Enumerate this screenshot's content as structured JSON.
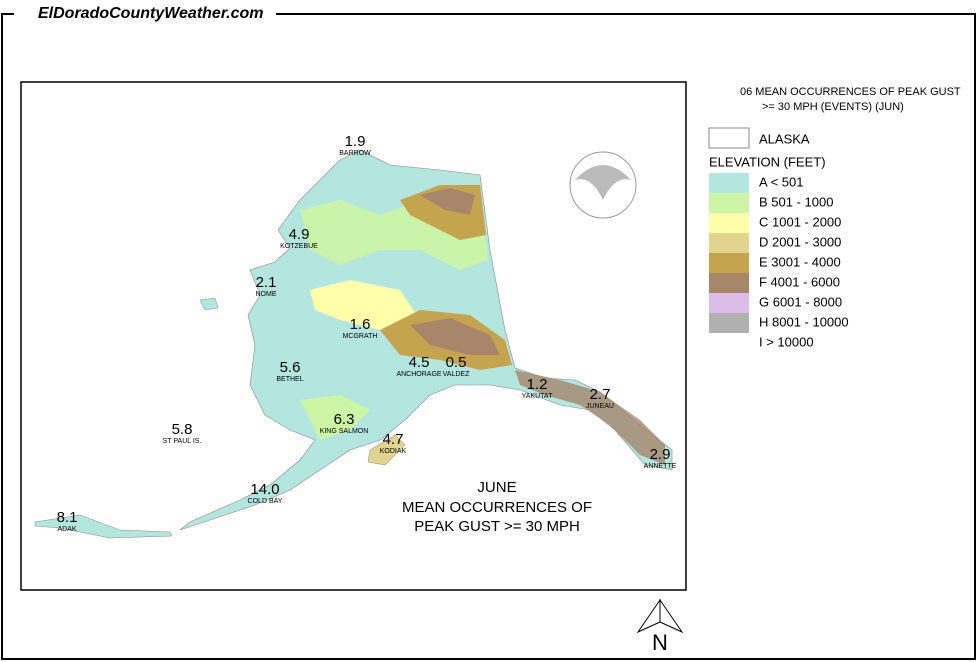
{
  "header": {
    "site": "ElDoradoCountyWeather.com"
  },
  "legend": {
    "title_lines": [
      "06 MEAN OCCURRENCES OF PEAK GUST",
      ">= 30 MPH (EVENTS) (JUN)"
    ],
    "region": "ALASKA",
    "elevation_title": "ELEVATION (FEET)",
    "elevation": [
      {
        "label": "A < 501",
        "color": "#b4e6e0"
      },
      {
        "label": "B 501 - 1000",
        "color": "#ccf5a4"
      },
      {
        "label": "C 1001 - 2000",
        "color": "#ffffaa"
      },
      {
        "label": "D 2001 - 3000",
        "color": "#e2d48c"
      },
      {
        "label": "E 3001 - 4000",
        "color": "#c4a44c"
      },
      {
        "label": "F 4001 - 6000",
        "color": "#a8866a"
      },
      {
        "label": "G 6001 - 8000",
        "color": "#dcbce8"
      },
      {
        "label": "H 8001 - 10000",
        "color": "#b0b0b0"
      },
      {
        "label": "I > 10000",
        "color": null
      }
    ]
  },
  "map": {
    "title_lines": [
      "JUNE",
      "MEAN OCCURRENCES OF",
      "PEAK GUST >= 30 MPH"
    ],
    "north": "N",
    "stations": [
      {
        "value": "1.9",
        "name": "BARROW"
      },
      {
        "value": "4.9",
        "name": "KOTZEBUE"
      },
      {
        "value": "2.1",
        "name": "NOME"
      },
      {
        "value": "1.6",
        "name": "MCGRATH"
      },
      {
        "value": "4.5",
        "name": "ANCHORAGE"
      },
      {
        "value": "0.5",
        "name": "VALDEZ"
      },
      {
        "value": "5.6",
        "name": "BETHEL"
      },
      {
        "value": "1.2",
        "name": "YAKUTAT"
      },
      {
        "value": "2.7",
        "name": "JUNEAU"
      },
      {
        "value": "6.3",
        "name": "KING SALMON"
      },
      {
        "value": "4.7",
        "name": "KODIAK"
      },
      {
        "value": "5.8",
        "name": "ST PAUL IS."
      },
      {
        "value": "2.9",
        "name": "ANNETTE"
      },
      {
        "value": "14.0",
        "name": "COLD BAY"
      },
      {
        "value": "8.1",
        "name": "ADAK"
      }
    ]
  }
}
